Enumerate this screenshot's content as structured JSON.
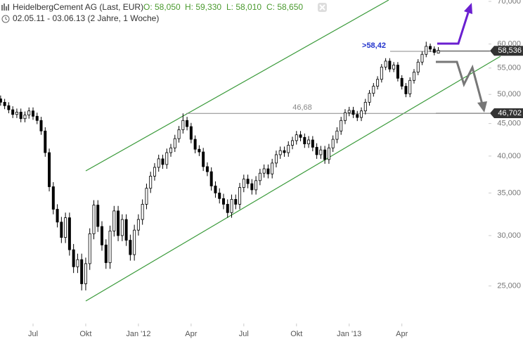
{
  "chart_data": {
    "type": "candlestick",
    "title": "HeidelbergCement AG (Last, EUR)",
    "header_values": [
      "O: 58,050",
      "H: 59,330",
      "L: 58,010",
      "C: 58,650"
    ],
    "subtitle": "02.05.11 - 03.06.13 (2 Jahre, 1 Woche)",
    "log_scale": true,
    "grid": false,
    "up_color": "#ffffff",
    "down_color": "#000000",
    "ylim": [
      22500,
      70000
    ],
    "yticks": [
      {
        "value": 25000,
        "label": "25,000"
      },
      {
        "value": 30000,
        "label": "30,000"
      },
      {
        "value": 35000,
        "label": "35,000"
      },
      {
        "value": 40000,
        "label": "40,000"
      },
      {
        "value": 45000,
        "label": "45,000"
      },
      {
        "value": 50000,
        "label": "50,000"
      },
      {
        "value": 55000,
        "label": "55,000"
      },
      {
        "value": 60000,
        "label": "60,000"
      },
      {
        "value": 70000,
        "label": "70,000"
      }
    ],
    "xlim": [
      0.85,
      120
    ],
    "xticks": [
      {
        "value": 9,
        "label": "Jul"
      },
      {
        "value": 22,
        "label": "Okt"
      },
      {
        "value": 35,
        "label": "Jan '12"
      },
      {
        "value": 48,
        "label": "Apr"
      },
      {
        "value": 61,
        "label": "Jul"
      },
      {
        "value": 74,
        "label": "Okt"
      },
      {
        "value": 87,
        "label": "Jan '13"
      },
      {
        "value": 100,
        "label": "Apr"
      }
    ],
    "open": [
      49600,
      49200,
      48600,
      48000,
      47300,
      46500,
      46900,
      45800,
      46400,
      47100,
      46200,
      45500,
      43800,
      40500,
      35800,
      33000,
      31500,
      29800,
      32000,
      28500,
      26800,
      27500,
      25200,
      27100,
      30200,
      33500,
      31000,
      29000,
      27200,
      30500,
      32800,
      30000,
      31800,
      29500,
      28000,
      30600,
      31800,
      33600,
      35600,
      37200,
      38400,
      39600,
      38800,
      40500,
      41200,
      42600,
      44000,
      45500,
      44500,
      42500,
      41000,
      40600,
      38500,
      37800,
      35900,
      35000,
      34300,
      33600,
      32600,
      34200,
      33600,
      35700,
      36800,
      36200,
      35400,
      36600,
      37600,
      38200,
      37500,
      39000,
      40200,
      40800,
      40500,
      41600,
      42300,
      43200,
      42800,
      41800,
      42400,
      41300,
      40200,
      40900,
      39500,
      41200,
      42500,
      43800,
      45500,
      46800,
      47200,
      46500,
      46000,
      47100,
      48600,
      50200,
      51500,
      52800,
      55200,
      56400,
      54800,
      55600,
      53000,
      51500,
      50100,
      52600,
      54200,
      56200,
      57800,
      59500,
      58900,
      58050
    ],
    "high": [
      50200,
      49800,
      49200,
      48600,
      47900,
      47500,
      47500,
      47000,
      47700,
      47700,
      46800,
      46100,
      44400,
      41100,
      36400,
      33600,
      32100,
      32600,
      32600,
      29100,
      28100,
      28100,
      27700,
      30800,
      34100,
      34100,
      31600,
      29600,
      31100,
      33400,
      33400,
      32400,
      32400,
      30100,
      31200,
      32400,
      34200,
      36200,
      37800,
      39000,
      40200,
      40200,
      41100,
      41800,
      43200,
      44600,
      46680,
      46100,
      45100,
      43100,
      41600,
      41200,
      39100,
      38400,
      36500,
      35600,
      34900,
      34200,
      34800,
      34800,
      36300,
      37400,
      37400,
      36800,
      37200,
      38200,
      38800,
      38800,
      39600,
      40800,
      41400,
      41400,
      42200,
      42900,
      43800,
      43800,
      43400,
      43000,
      43000,
      41900,
      41500,
      41500,
      41800,
      43100,
      44400,
      46100,
      47400,
      47800,
      47800,
      47100,
      47700,
      49200,
      50800,
      52100,
      53400,
      55800,
      57000,
      57000,
      56200,
      56200,
      53600,
      52100,
      53200,
      54800,
      56800,
      58400,
      60500,
      60100,
      59500,
      59330
    ],
    "low": [
      48600,
      48000,
      47400,
      46700,
      45900,
      45900,
      45200,
      45200,
      45800,
      45600,
      44900,
      43200,
      39900,
      35200,
      32400,
      30900,
      29200,
      29200,
      27900,
      26200,
      26200,
      24600,
      24600,
      26500,
      29600,
      30400,
      28400,
      26600,
      26600,
      29900,
      29400,
      29400,
      28900,
      27400,
      27400,
      30000,
      31200,
      33000,
      35000,
      36600,
      37800,
      38200,
      38200,
      39900,
      40600,
      42000,
      43400,
      43900,
      41900,
      40400,
      40000,
      37900,
      37200,
      35300,
      34400,
      33700,
      33000,
      32000,
      32000,
      33000,
      33000,
      35100,
      35600,
      34800,
      34800,
      36000,
      37000,
      36900,
      36900,
      38400,
      39600,
      39900,
      39900,
      41000,
      41700,
      42200,
      41200,
      41200,
      40700,
      39600,
      39600,
      38900,
      38900,
      40600,
      41900,
      43200,
      44900,
      46200,
      45900,
      45400,
      45400,
      46500,
      48000,
      49600,
      50900,
      52200,
      54600,
      54200,
      54200,
      52400,
      50900,
      49500,
      49500,
      52000,
      53600,
      55600,
      57200,
      58300,
      57600,
      58010
    ],
    "close": [
      49200,
      48600,
      48000,
      47300,
      46500,
      46900,
      45800,
      46400,
      47100,
      46200,
      45500,
      43800,
      40500,
      35800,
      33000,
      31500,
      29800,
      32000,
      28500,
      26800,
      27500,
      25200,
      27100,
      30200,
      33500,
      31000,
      29000,
      27200,
      30500,
      32800,
      30000,
      31800,
      29500,
      28000,
      30600,
      31800,
      33600,
      35600,
      37200,
      38400,
      39600,
      38800,
      40500,
      41200,
      42600,
      44000,
      45500,
      44500,
      42500,
      41000,
      40600,
      38500,
      37800,
      35900,
      35000,
      34300,
      33600,
      32600,
      34200,
      33600,
      35700,
      36800,
      36200,
      35400,
      36600,
      37600,
      38200,
      37500,
      39000,
      40200,
      40800,
      40500,
      41600,
      42300,
      43200,
      42800,
      41800,
      42400,
      41300,
      40200,
      40900,
      39500,
      41200,
      42500,
      43800,
      45500,
      46800,
      47200,
      46500,
      46000,
      47100,
      48600,
      50200,
      51500,
      52800,
      55200,
      56400,
      54800,
      55600,
      53000,
      51500,
      50100,
      52600,
      54200,
      56200,
      57800,
      59500,
      58900,
      58200,
      58650
    ],
    "annotations": [
      {
        "value": 46680,
        "label": "46,68",
        "color": "#888888"
      },
      {
        "value": 58420,
        "label": ">58,42",
        "color": "#2233cc"
      }
    ],
    "levels": [
      {
        "value": 46702,
        "label": "46,702"
      },
      {
        "value": 58536,
        "label": "58,536"
      }
    ]
  }
}
